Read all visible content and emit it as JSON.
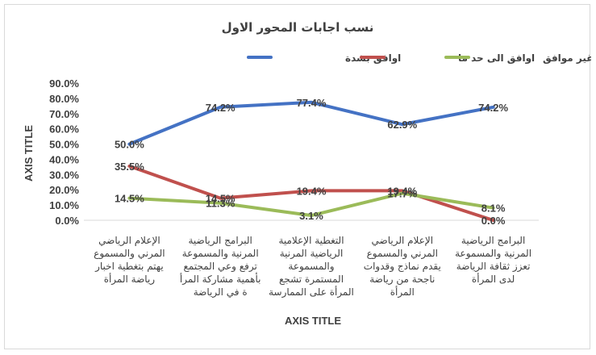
{
  "chart_data": {
    "type": "line",
    "title": "نسب اجابات المحور الاول",
    "xlabel": "AXIS TITLE",
    "ylabel": "AXIS TITLE",
    "ylim": [
      0,
      90
    ],
    "ytick_labels": [
      "0.0%",
      "10.0%",
      "20.0%",
      "30.0%",
      "40.0%",
      "50.0%",
      "60.0%",
      "70.0%",
      "80.0%",
      "90.0%"
    ],
    "grid": false,
    "legend_position": "top",
    "categories": [
      [
        "الإعلام الرياضي",
        "المرني والمسموع",
        "يهتم بتغطية اخبار",
        "رياضة المرأة"
      ],
      [
        "البرامج الرياضية",
        "المرنية والمسموعة",
        "ترفع وعي المجتمع",
        "بأهمية  مشاركة المرأ",
        "ة في الرياضة"
      ],
      [
        "التغطية الإعلامية",
        "الرياضية المرنية",
        "والمسموعة",
        "المستمرة تشجع",
        "المرأة على الممارسة"
      ],
      [
        "الإعلام الرياضي",
        "المرني والمسموع",
        "يقدم نماذج وقدوات",
        "ناجحة من رياضة",
        "المرأة"
      ],
      [
        "البرامج الرياضية",
        "المرنية والمسموعة",
        "تعزز ثقافة الرياضة",
        "لدى المرأة"
      ]
    ],
    "series": [
      {
        "name": "اوافق بشدة",
        "color": "#4472c4",
        "values": [
          50.0,
          74.2,
          77.4,
          62.9,
          74.2
        ],
        "labels": [
          "50.0%",
          "74.2%",
          "77.4%",
          "62.9%",
          "74.2%"
        ]
      },
      {
        "name": "اوافق الى حد ما",
        "color": "#c0504d",
        "values": [
          35.5,
          14.5,
          19.4,
          19.4,
          0.0
        ],
        "labels": [
          "35.5%",
          "14.5%",
          "19.4%",
          "19.4%",
          "0.0%"
        ]
      },
      {
        "name": "غير موافق",
        "color": "#9bbb59",
        "values": [
          14.5,
          11.3,
          3.1,
          17.7,
          8.1
        ],
        "labels": [
          "14.5%",
          "11.3%",
          "3.1%",
          "17.7%",
          "8.1%"
        ]
      }
    ]
  }
}
